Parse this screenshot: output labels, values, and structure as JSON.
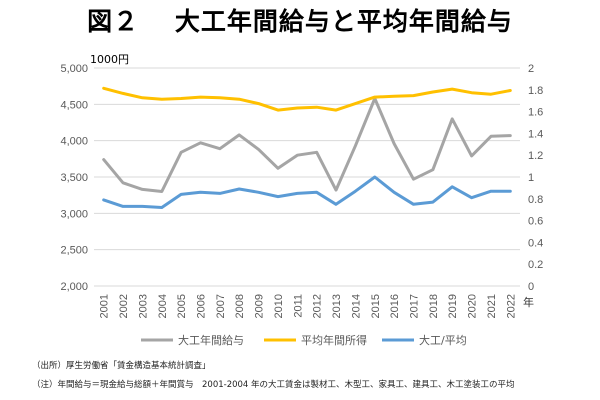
{
  "figure_title": "図２　 大工年間給与と平均年間給与",
  "unit_label": "1000円",
  "year_unit": "年",
  "notes": {
    "source": "（出所）厚生労働省「賃金構造基本統計調査」",
    "remark": "（注）年間給与＝現金給与総額＋年間賞与　2001-2004 年の大工賃金は製材工、木型工、家具工、建具工、木工塗装工の平均"
  },
  "chart_data": {
    "type": "line",
    "title": "大工年間給与と平均年間給与",
    "x": [
      "2001",
      "2002",
      "2003",
      "2004",
      "2005",
      "2006",
      "2007",
      "2008",
      "2009",
      "2010",
      "2011",
      "2012",
      "2013",
      "2014",
      "2015",
      "2016",
      "2017",
      "2018",
      "2019",
      "2020",
      "2021",
      "2022"
    ],
    "y_left": {
      "label": "1000円",
      "range": [
        2000,
        5000
      ],
      "ticks": [
        "2,000",
        "2,500",
        "3,000",
        "3,500",
        "4,000",
        "4,500",
        "5,000"
      ]
    },
    "y_right": {
      "label": "",
      "range": [
        0,
        2
      ],
      "ticks": [
        "0",
        "0.2",
        "0.4",
        "0.6",
        "0.8",
        "1",
        "1.2",
        "1.4",
        "1.6",
        "1.8",
        "2"
      ]
    },
    "series": [
      {
        "name": "大工年間給与",
        "axis": "left",
        "color": "#a5a5a5",
        "values": [
          3740,
          3420,
          3330,
          3300,
          3840,
          3970,
          3890,
          4080,
          3880,
          3620,
          3800,
          3840,
          3320,
          3930,
          4580,
          3960,
          3470,
          3600,
          4300,
          3790,
          4060,
          4070
        ]
      },
      {
        "name": "平均年間所得",
        "axis": "left",
        "color": "#ffc000",
        "values": [
          4720,
          4650,
          4590,
          4570,
          4580,
          4600,
          4590,
          4570,
          4510,
          4420,
          4450,
          4460,
          4420,
          4510,
          4600,
          4610,
          4620,
          4670,
          4710,
          4660,
          4640,
          4690
        ]
      },
      {
        "name": "大工/平均",
        "axis": "right",
        "color": "#5b9bd5",
        "values": [
          0.79,
          0.73,
          0.73,
          0.72,
          0.84,
          0.86,
          0.85,
          0.89,
          0.86,
          0.82,
          0.85,
          0.86,
          0.75,
          0.87,
          1.0,
          0.86,
          0.75,
          0.77,
          0.91,
          0.81,
          0.87,
          0.87
        ]
      }
    ],
    "grid": true,
    "legend": "bottom"
  }
}
